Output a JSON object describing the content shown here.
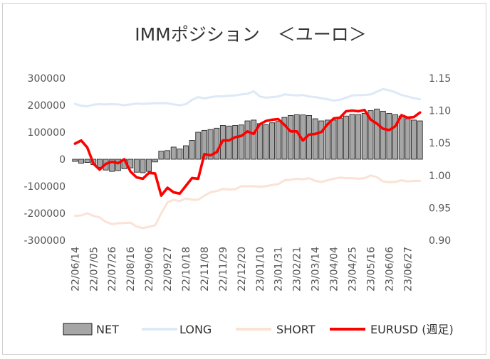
{
  "chart_data": {
    "type": "bar",
    "title": "IMMポジション　＜ユーロ＞",
    "x_tick_labels": [
      "22/06/14",
      "22/07/05",
      "22/07/26",
      "22/08/16",
      "22/09/06",
      "22/09/27",
      "22/10/18",
      "22/11/08",
      "22/11/29",
      "22/12/20",
      "23/01/10",
      "23/01/31",
      "23/02/21",
      "23/03/14",
      "23/04/04",
      "23/04/25",
      "23/05/16",
      "23/06/06",
      "23/06/27"
    ],
    "x": [
      "22/06/14",
      "22/06/21",
      "22/06/28",
      "22/07/05",
      "22/07/12",
      "22/07/19",
      "22/07/26",
      "22/08/02",
      "22/08/09",
      "22/08/16",
      "22/08/23",
      "22/08/30",
      "22/09/06",
      "22/09/13",
      "22/09/20",
      "22/09/27",
      "22/10/04",
      "22/10/11",
      "22/10/18",
      "22/10/25",
      "22/11/01",
      "22/11/08",
      "22/11/15",
      "22/11/22",
      "22/11/29",
      "22/12/06",
      "22/12/13",
      "22/12/20",
      "22/12/27",
      "23/01/03",
      "23/01/10",
      "23/01/17",
      "23/01/24",
      "23/01/31",
      "23/02/07",
      "23/02/14",
      "23/02/21",
      "23/02/28",
      "23/03/07",
      "23/03/14",
      "23/03/21",
      "23/03/28",
      "23/04/04",
      "23/04/11",
      "23/04/18",
      "23/04/25",
      "23/05/02",
      "23/05/09",
      "23/05/16",
      "23/05/23",
      "23/05/30",
      "23/06/06",
      "23/06/13",
      "23/06/20",
      "23/06/27",
      "23/07/04",
      "23/07/11"
    ],
    "y_left": {
      "range": [
        -300000,
        300000
      ],
      "ticks": [
        "300000",
        "200000",
        "100000",
        "0",
        "-100000",
        "-200000",
        "-300000"
      ]
    },
    "y_right": {
      "range": [
        0.9,
        1.15
      ],
      "ticks": [
        "1.15",
        "1.10",
        "1.05",
        "1.00",
        "0.95",
        "0.90"
      ]
    },
    "series": [
      {
        "name": "NET",
        "type": "bar",
        "axis": "left",
        "color": "#a6a6a6",
        "values": [
          -8000,
          -15000,
          -12000,
          -20000,
          -30000,
          -40000,
          -45000,
          -42000,
          -35000,
          -32000,
          -48000,
          -50000,
          -45000,
          -10000,
          30000,
          32000,
          45000,
          38000,
          50000,
          70000,
          100000,
          107000,
          110000,
          115000,
          125000,
          123000,
          125000,
          127000,
          142000,
          145000,
          132000,
          128000,
          135000,
          140000,
          155000,
          162000,
          165000,
          164000,
          162000,
          150000,
          142000,
          145000,
          145000,
          152000,
          160000,
          166000,
          165000,
          170000,
          180000,
          186000,
          178000,
          170000,
          165000,
          160000,
          150000,
          145000,
          142000
        ]
      },
      {
        "name": "LONG",
        "type": "line",
        "axis": "left",
        "color": "#dde9f6",
        "values": [
          205000,
          198000,
          196000,
          202000,
          204000,
          203000,
          204000,
          203000,
          200000,
          203000,
          206000,
          205000,
          206000,
          207000,
          208000,
          207000,
          203000,
          200000,
          204000,
          220000,
          230000,
          225000,
          230000,
          233000,
          233000,
          235000,
          236000,
          240000,
          242000,
          252000,
          232000,
          228000,
          230000,
          232000,
          240000,
          238000,
          236000,
          238000,
          232000,
          230000,
          226000,
          222000,
          217000,
          220000,
          228000,
          236000,
          237000,
          238000,
          240000,
          250000,
          260000,
          255000,
          248000,
          238000,
          232000,
          226000,
          222000
        ]
      },
      {
        "name": "SHORT",
        "type": "line",
        "axis": "left",
        "color": "#fbe2d5",
        "values": [
          -210000,
          -208000,
          -200000,
          -210000,
          -215000,
          -232000,
          -240000,
          -237000,
          -236000,
          -235000,
          -249000,
          -255000,
          -250000,
          -245000,
          -200000,
          -160000,
          -150000,
          -155000,
          -145000,
          -150000,
          -150000,
          -135000,
          -122000,
          -118000,
          -110000,
          -112000,
          -111000,
          -100000,
          -100000,
          -100000,
          -102000,
          -100000,
          -95000,
          -92000,
          -78000,
          -76000,
          -72000,
          -74000,
          -70000,
          -80000,
          -84000,
          -78000,
          -72000,
          -68000,
          -70000,
          -70000,
          -72000,
          -70000,
          -60000,
          -66000,
          -82000,
          -85000,
          -84000,
          -78000,
          -82000,
          -80000,
          -80000
        ]
      },
      {
        "name": "EURUSD (週足)",
        "type": "line",
        "axis": "right",
        "color": "#ff0000",
        "values": [
          1.049,
          1.054,
          1.043,
          1.018,
          1.009,
          1.018,
          1.021,
          1.019,
          1.025,
          1.006,
          0.997,
          0.995,
          1.004,
          1.003,
          0.969,
          0.981,
          0.974,
          0.972,
          0.984,
          0.996,
          0.995,
          1.033,
          1.031,
          1.036,
          1.054,
          1.054,
          1.059,
          1.061,
          1.068,
          1.064,
          1.079,
          1.084,
          1.086,
          1.087,
          1.078,
          1.068,
          1.068,
          1.054,
          1.063,
          1.064,
          1.067,
          1.079,
          1.088,
          1.089,
          1.099,
          1.1,
          1.099,
          1.101,
          1.086,
          1.08,
          1.072,
          1.07,
          1.076,
          1.093,
          1.089,
          1.09,
          1.097
        ]
      }
    ],
    "grid": false,
    "legend_position": "bottom"
  }
}
